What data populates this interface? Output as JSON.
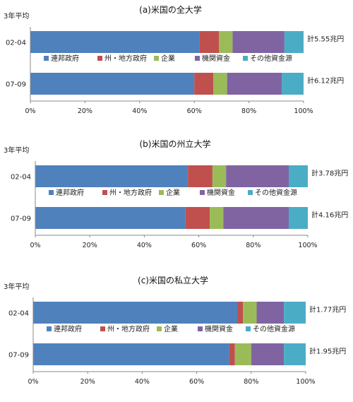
{
  "colors": {
    "連邦政府": "#4f81bd",
    "州・地方政府": "#c0504d",
    "企業": "#9bbb59",
    "機関資金": "#8064a2",
    "その他資金源": "#4bacc6"
  },
  "chart_data": [
    {
      "type": "bar",
      "orientation": "horizontal",
      "stacked": true,
      "title": "(a)米国の全大学",
      "period_label": "3年平均",
      "categories": [
        "02-04",
        "07-09"
      ],
      "totals": [
        "計5.55兆円",
        "計6.12兆円"
      ],
      "series": [
        {
          "name": "連邦政府",
          "values": [
            62,
            60
          ]
        },
        {
          "name": "州・地方政府",
          "values": [
            7,
            7
          ]
        },
        {
          "name": "企業",
          "values": [
            5,
            5
          ]
        },
        {
          "name": "機関資金",
          "values": [
            19,
            20
          ]
        },
        {
          "name": "その他資金源",
          "values": [
            7,
            8
          ]
        }
      ],
      "xlim": [
        0,
        100
      ],
      "xticks": [
        "0%",
        "20%",
        "40%",
        "60%",
        "80%",
        "100%"
      ],
      "legend": "between-bars"
    },
    {
      "type": "bar",
      "orientation": "horizontal",
      "stacked": true,
      "title": "(b)米国の州立大学",
      "period_label": "3年平均",
      "categories": [
        "02-04",
        "07-09"
      ],
      "totals": [
        "計3.78兆円",
        "計4.16兆円"
      ],
      "series": [
        {
          "name": "連邦政府",
          "values": [
            56,
            55
          ]
        },
        {
          "name": "州・地方政府",
          "values": [
            9,
            9
          ]
        },
        {
          "name": "企業",
          "values": [
            5,
            5
          ]
        },
        {
          "name": "機関資金",
          "values": [
            23,
            24
          ]
        },
        {
          "name": "その他資金源",
          "values": [
            7,
            7
          ]
        }
      ],
      "xlim": [
        0,
        100
      ],
      "xticks": [
        "0%",
        "20%",
        "40%",
        "60%",
        "80%",
        "100%"
      ],
      "legend": "between-bars"
    },
    {
      "type": "bar",
      "orientation": "horizontal",
      "stacked": true,
      "title": "(c)米国の私立大学",
      "period_label": "3年平均",
      "categories": [
        "02-04",
        "07-09"
      ],
      "totals": [
        "計1.77兆円",
        "計1.95兆円"
      ],
      "series": [
        {
          "name": "連邦政府",
          "values": [
            75,
            72
          ]
        },
        {
          "name": "州・地方政府",
          "values": [
            2,
            2
          ]
        },
        {
          "name": "企業",
          "values": [
            5,
            6
          ]
        },
        {
          "name": "機関資金",
          "values": [
            10,
            12
          ]
        },
        {
          "name": "その他資金源",
          "values": [
            8,
            8
          ]
        }
      ],
      "xlim": [
        0,
        100
      ],
      "xticks": [
        "0%",
        "20%",
        "40%",
        "60%",
        "80%",
        "100%"
      ],
      "legend": "between-bars"
    }
  ]
}
